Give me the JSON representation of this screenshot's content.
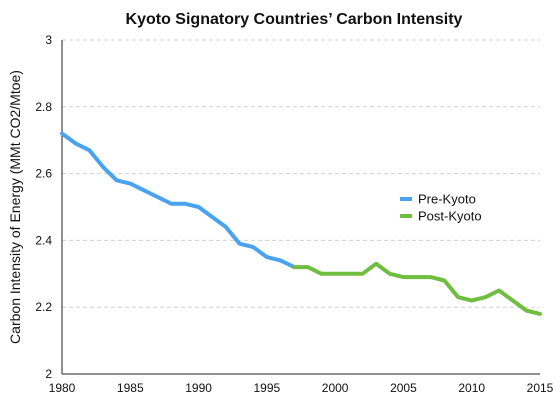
{
  "chart_data": {
    "type": "line",
    "title": "Kyoto Signatory Countries’ Carbon Intensity",
    "xlabel": "",
    "ylabel": "Carbon Intensity of Energy (MMt CO2/Mtoe)",
    "xlim": [
      1980,
      2015
    ],
    "ylim": [
      2,
      3
    ],
    "xticks": [
      1980,
      1985,
      1990,
      1995,
      2000,
      2005,
      2010,
      2015
    ],
    "yticks": [
      2,
      2.2,
      2.4,
      2.6,
      2.8,
      3
    ],
    "grid": true,
    "legend_position": "right",
    "series": [
      {
        "name": "Pre-Kyoto",
        "color": "#4aa3f0",
        "x": [
          1980,
          1981,
          1982,
          1983,
          1984,
          1985,
          1986,
          1987,
          1988,
          1989,
          1990,
          1991,
          1992,
          1993,
          1994,
          1995,
          1996,
          1997
        ],
        "y": [
          2.72,
          2.69,
          2.67,
          2.62,
          2.58,
          2.57,
          2.55,
          2.53,
          2.51,
          2.51,
          2.5,
          2.47,
          2.44,
          2.39,
          2.38,
          2.35,
          2.34,
          2.32
        ]
      },
      {
        "name": "Post-Kyoto",
        "color": "#6fbe3f",
        "x": [
          1997,
          1998,
          1999,
          2000,
          2001,
          2002,
          2003,
          2004,
          2005,
          2006,
          2007,
          2008,
          2009,
          2010,
          2011,
          2012,
          2013,
          2014,
          2015
        ],
        "y": [
          2.32,
          2.32,
          2.3,
          2.3,
          2.3,
          2.3,
          2.33,
          2.3,
          2.29,
          2.29,
          2.29,
          2.28,
          2.23,
          2.22,
          2.23,
          2.25,
          2.22,
          2.19,
          2.18
        ]
      }
    ]
  }
}
